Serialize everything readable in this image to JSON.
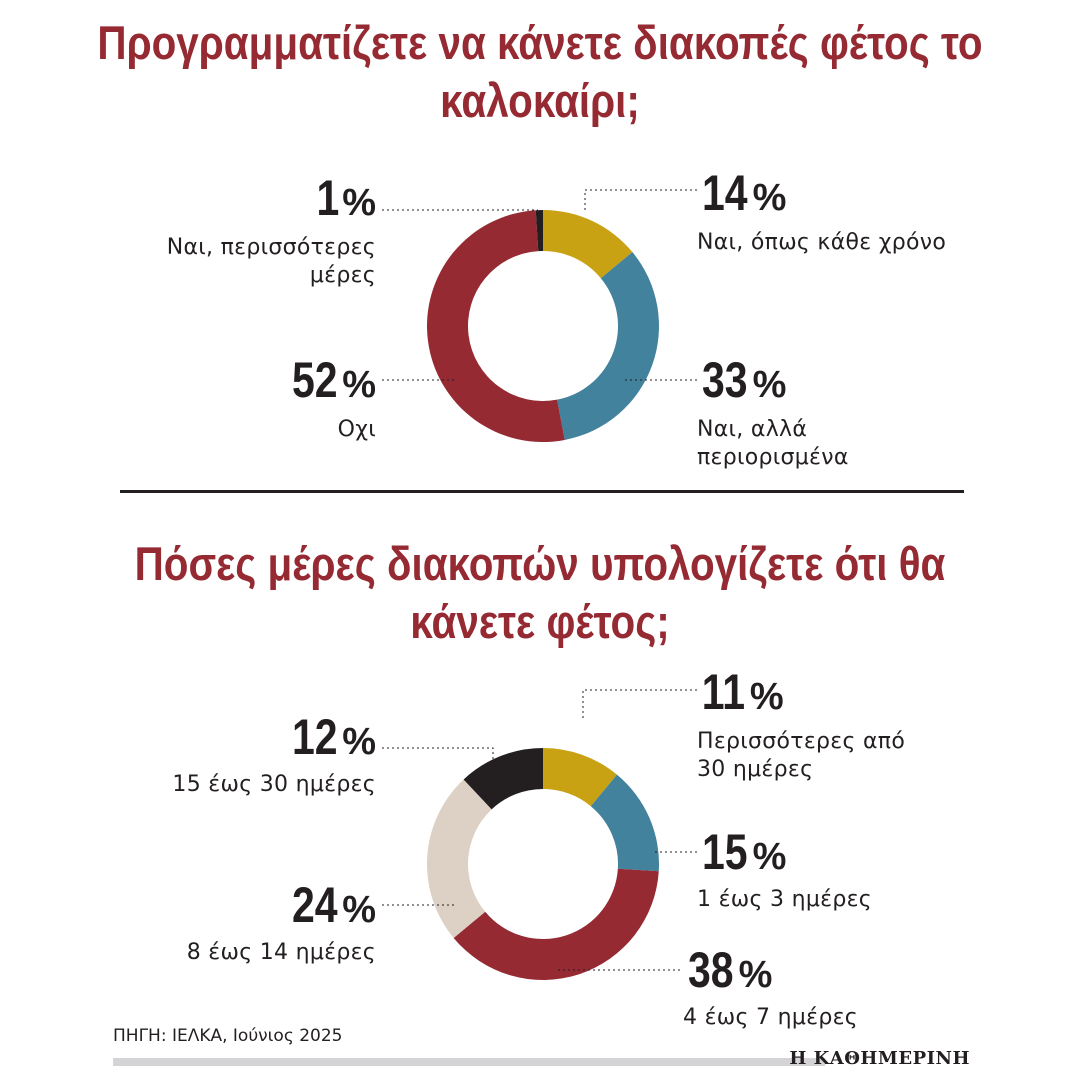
{
  "charts": {
    "c1": {
      "title": "Προγραμματίζετε να κάνετε διακοπές φέτος το καλοκαίρι;",
      "items": [
        {
          "value": "14",
          "label": "Ναι, όπως κάθε χρόνο"
        },
        {
          "value": "33",
          "label": "Ναι, αλλά περιορισμένα"
        },
        {
          "value": "52",
          "label": "Οχι"
        },
        {
          "value": "1",
          "label": "Ναι, περισσότερες μέρες"
        }
      ]
    },
    "c2": {
      "title": "Πόσες μέρες διακοπών υπολογίζετε ότι θα κάνετε φέτος;",
      "items": [
        {
          "value": "11",
          "label": "Περισσότερες από 30 ημέρες"
        },
        {
          "value": "15",
          "label": "1 έως 3 ημέρες"
        },
        {
          "value": "38",
          "label": "4 έως 7 ημέρες"
        },
        {
          "value": "24",
          "label": "8 έως 14 ημέρες"
        },
        {
          "value": "12",
          "label": "15 έως 30 ημέρες"
        }
      ]
    }
  },
  "percent_symbol": "%",
  "source": "ΠΗΓΗ: ΙΕΛΚΑ, Ιούνιος 2025",
  "publisher": "Η ΚΑΘΗΜΕΡΙΝΗ",
  "chart_data": [
    {
      "type": "pie",
      "title": "Προγραμματίζετε να κάνετε διακοπές φέτος το καλοκαίρι;",
      "categories": [
        "Ναι, όπως κάθε χρόνο",
        "Ναι, αλλά περιορισμένα",
        "Οχι",
        "Ναι, περισσότερες μέρες"
      ],
      "values": [
        14,
        33,
        52,
        1
      ],
      "colors": [
        "#c9a214",
        "#43829d",
        "#962a33",
        "#231f20"
      ],
      "unit": "%"
    },
    {
      "type": "pie",
      "title": "Πόσες μέρες διακοπών υπολογίζετε ότι θα κάνετε φέτος;",
      "categories": [
        "Περισσότερες από 30 ημέρες",
        "1 έως 3 ημέρες",
        "4 έως 7 ημέρες",
        "8 έως 14 ημέρες",
        "15 έως 30 ημέρες"
      ],
      "values": [
        11,
        15,
        38,
        24,
        12
      ],
      "colors": [
        "#c9a214",
        "#43829d",
        "#962a33",
        "#ddd0c4",
        "#231f20"
      ],
      "unit": "%"
    }
  ]
}
